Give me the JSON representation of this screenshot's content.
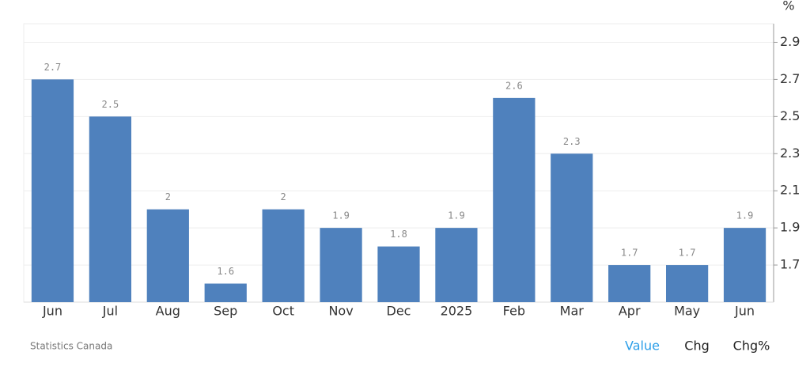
{
  "chart_data": {
    "type": "bar",
    "unit": "%",
    "categories": [
      "Jun",
      "Jul",
      "Aug",
      "Sep",
      "Oct",
      "Nov",
      "Dec",
      "2025",
      "Feb",
      "Mar",
      "Apr",
      "May",
      "Jun"
    ],
    "values": [
      2.7,
      2.5,
      2,
      1.6,
      2,
      1.9,
      1.8,
      1.9,
      2.6,
      2.3,
      1.7,
      1.7,
      1.9
    ],
    "color": "#4f81bd",
    "ylim": [
      1.5,
      3.0
    ],
    "yticks": [
      1.7,
      1.9,
      2.1,
      2.3,
      2.5,
      2.7,
      2.9
    ],
    "grid": true
  },
  "source": "Statistics Canada",
  "tabs": [
    "Value",
    "Chg",
    "Chg%"
  ],
  "active_tab": 0
}
